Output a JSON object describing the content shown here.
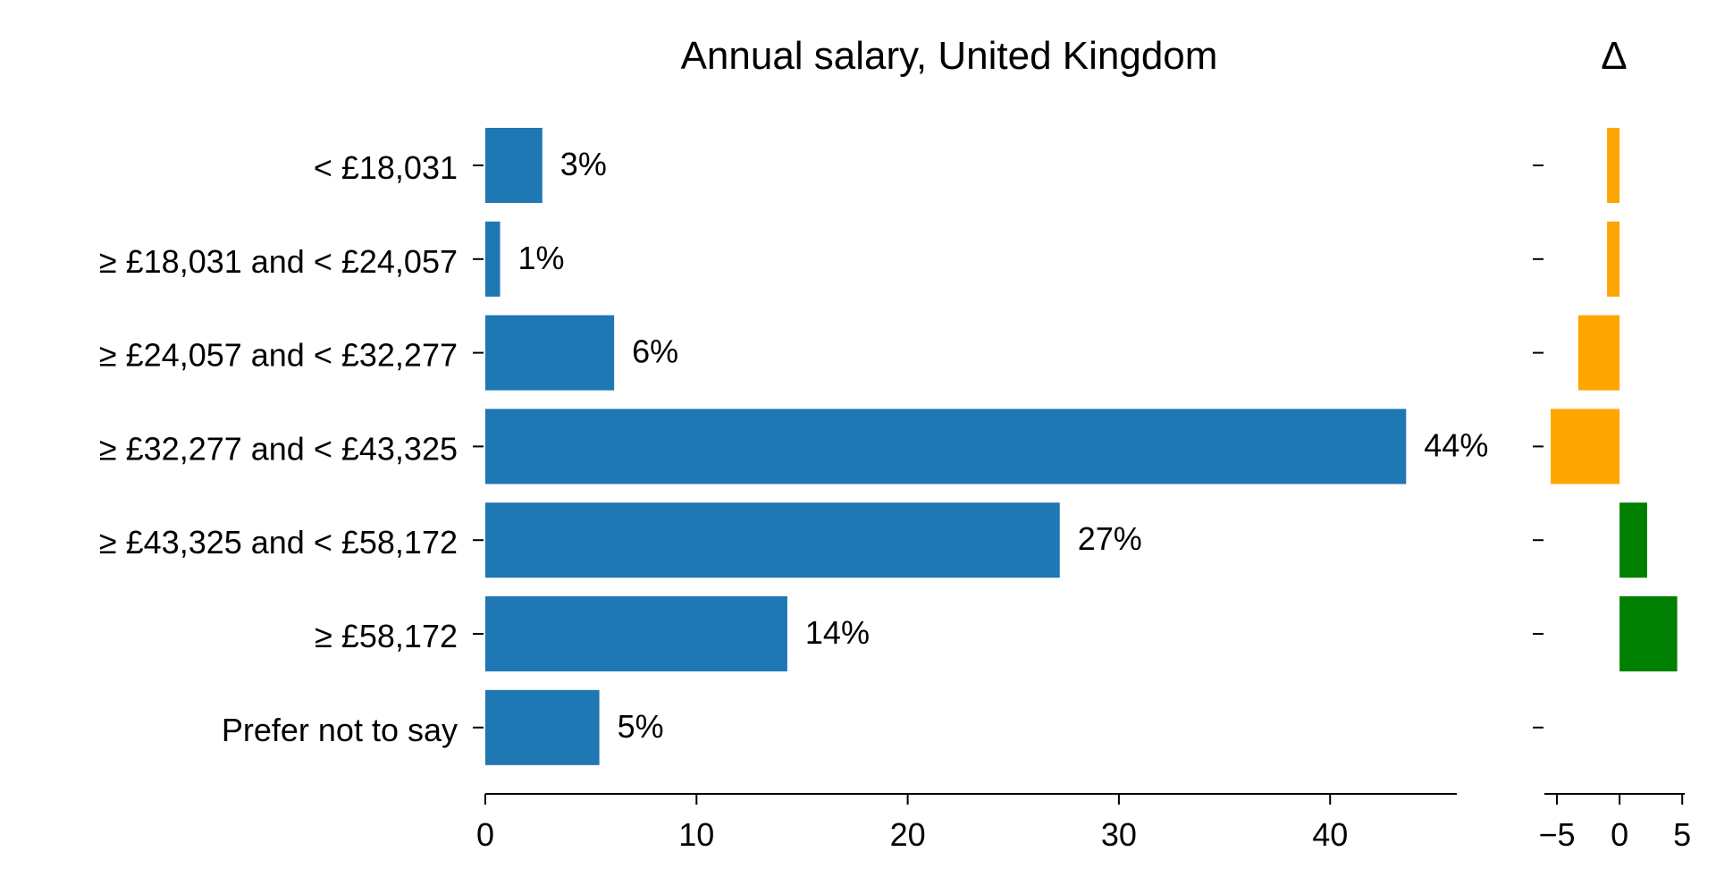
{
  "chart_data": [
    {
      "type": "bar",
      "orientation": "horizontal",
      "title": "Annual salary, United Kingdom",
      "categories": [
        "< £18,031",
        "≥ £18,031 and < £24,057",
        "≥ £24,057 and < £32,277",
        "≥ £32,277 and < £43,325",
        "≥ £43,325 and < £58,172",
        "≥ £58,172",
        "Prefer not to say"
      ],
      "values": [
        2.7,
        0.7,
        6.1,
        43.6,
        27.2,
        14.3,
        5.4
      ],
      "data_labels": [
        "3%",
        "1%",
        "6%",
        "44%",
        "27%",
        "14%",
        "5%"
      ],
      "xlim": [
        0,
        46
      ],
      "x_ticks": [
        0,
        10,
        20,
        30,
        40
      ],
      "x_tick_labels": [
        "0",
        "10",
        "20",
        "30",
        "40"
      ],
      "color": "#1f77b4",
      "grid": false
    },
    {
      "type": "bar",
      "orientation": "horizontal",
      "title": "Δ",
      "categories": [
        "< £18,031",
        "≥ £18,031 and < £24,057",
        "≥ £24,057 and < £32,277",
        "≥ £32,277 and < £43,325",
        "≥ £43,325 and < £58,172",
        "≥ £58,172",
        "Prefer not to say"
      ],
      "values": [
        -1.0,
        -1.0,
        -3.3,
        -5.5,
        2.2,
        4.6,
        null
      ],
      "xlim": [
        -6,
        5.2
      ],
      "x_ticks": [
        -5,
        0,
        5
      ],
      "x_tick_labels": [
        "−5",
        "0",
        "5"
      ],
      "negative_color": "#ffa500",
      "positive_color": "#008000",
      "grid": false
    }
  ]
}
